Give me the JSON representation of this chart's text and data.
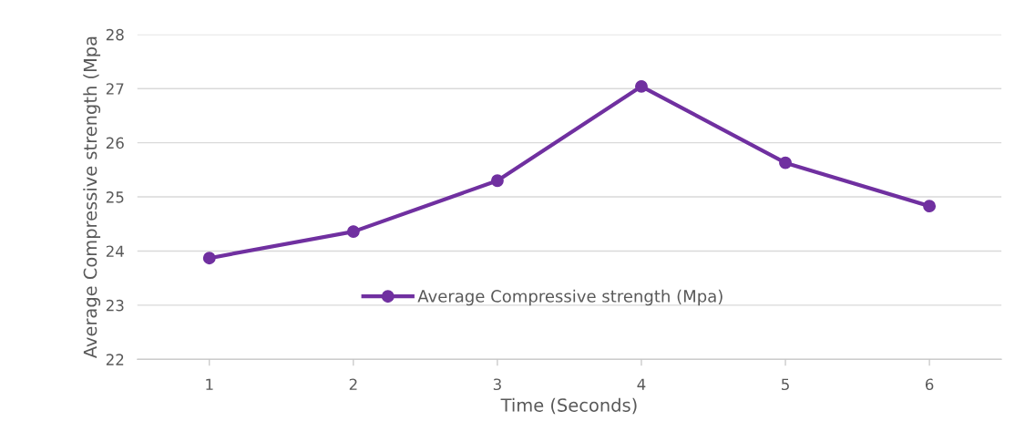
{
  "chart_data": {
    "type": "line",
    "xlabel": "Time (Seconds)",
    "ylabel": "Average Compressive strength (Mpa",
    "categories": [
      "1",
      "2",
      "3",
      "4",
      "5",
      "6"
    ],
    "series": [
      {
        "name": "Average Compressive strength (Mpa)",
        "color": "#7030a0",
        "values": [
          23.87,
          24.36,
          25.3,
          27.04,
          25.63,
          24.83
        ]
      }
    ],
    "ylim": [
      22,
      28
    ],
    "yticks": [
      22,
      23,
      24,
      25,
      26,
      27,
      28
    ],
    "grid": "y",
    "legend": "bottom",
    "marker": "circle",
    "line_style": "solid"
  }
}
